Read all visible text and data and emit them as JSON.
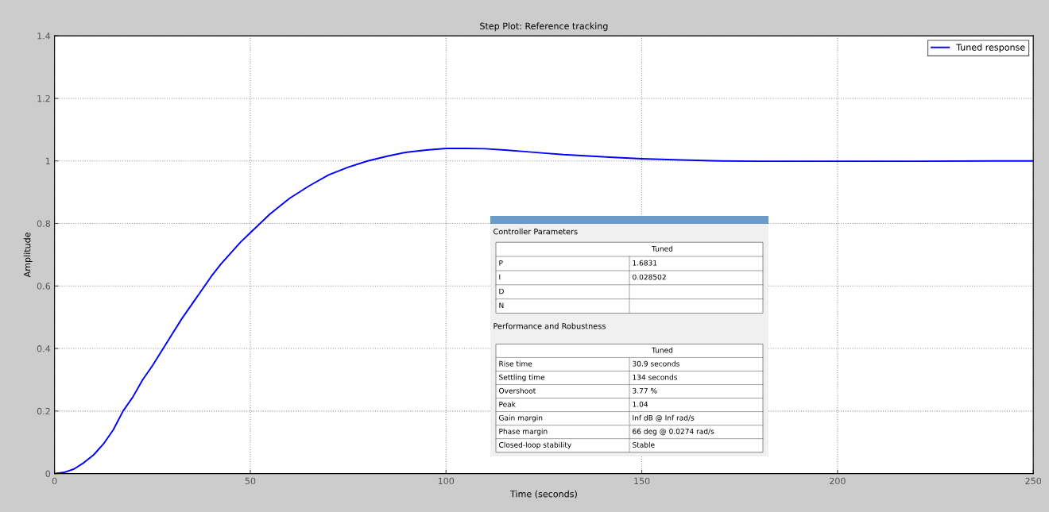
{
  "chart_data": [
    {
      "type": "line",
      "title": "Step Plot: Reference tracking",
      "xlabel": "Time (seconds)",
      "ylabel": "Amplitude",
      "xlim": [
        0,
        250
      ],
      "ylim": [
        0,
        1.4
      ],
      "xticks": [
        0,
        50,
        100,
        150,
        200,
        250
      ],
      "yticks": [
        0,
        0.2,
        0.4,
        0.6,
        0.8,
        1,
        1.2,
        1.4
      ],
      "grid": true,
      "legend": "top right",
      "marker": "none",
      "line_style": "solid",
      "series": [
        {
          "name": "Tuned response",
          "color": "#0000ff",
          "x": [
            0,
            2.5,
            5,
            7.5,
            10,
            12.5,
            15,
            17.5,
            20,
            22.5,
            25,
            27.5,
            30,
            32.5,
            35,
            37.5,
            40,
            42.5,
            45,
            47.5,
            50,
            55,
            60,
            65,
            70,
            75,
            80,
            85,
            90,
            95,
            100,
            105,
            110,
            115,
            120,
            125,
            130,
            140,
            150,
            160,
            170,
            180,
            200,
            220,
            240,
            250
          ],
          "values": [
            0,
            0.004,
            0.015,
            0.035,
            0.06,
            0.095,
            0.14,
            0.2,
            0.245,
            0.3,
            0.345,
            0.395,
            0.445,
            0.495,
            0.54,
            0.585,
            0.63,
            0.67,
            0.705,
            0.74,
            0.77,
            0.83,
            0.88,
            0.92,
            0.955,
            0.98,
            1.0,
            1.015,
            1.028,
            1.035,
            1.04,
            1.04,
            1.039,
            1.035,
            1.03,
            1.025,
            1.02,
            1.013,
            1.007,
            1.003,
            1.0,
            0.999,
            0.999,
            0.999,
            1.0,
            1.0
          ]
        }
      ]
    },
    {
      "type": "other",
      "title": "Controller Parameters",
      "annotations": [
        "Tuned",
        "P",
        "1.6831",
        "I",
        "0.028502",
        "D",
        null,
        "N",
        null
      ]
    },
    {
      "type": "other",
      "title": "Performance and Robustness",
      "annotations": [
        "Tuned",
        "Rise time",
        "30.9 seconds",
        "Settling time",
        "134 seconds",
        "Overshoot",
        "3.77 %",
        "Peak",
        "1.04",
        "Gain margin",
        "Inf dB @ Inf rad/s",
        "Phase margin",
        "66 deg @ 0.0274 rad/s",
        "Closed-loop stability",
        "Stable"
      ]
    }
  ]
}
